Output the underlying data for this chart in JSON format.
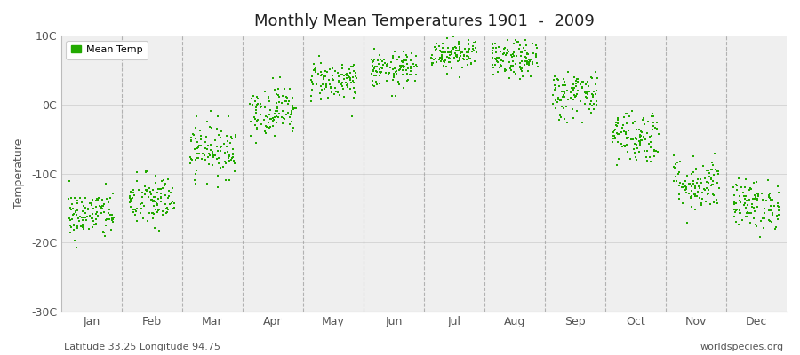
{
  "title": "Monthly Mean Temperatures 1901  -  2009",
  "ylabel": "Temperature",
  "subtitle_left": "Latitude 33.25 Longitude 94.75",
  "subtitle_right": "worldspecies.org",
  "legend_label": "Mean Temp",
  "dot_color": "#22aa00",
  "background_color": "#ffffff",
  "plot_bg_color": "#efefef",
  "months": [
    "Jan",
    "Feb",
    "Mar",
    "Apr",
    "May",
    "Jun",
    "Jul",
    "Aug",
    "Sep",
    "Oct",
    "Nov",
    "Dec"
  ],
  "month_positions": [
    0.5,
    1.5,
    2.5,
    3.5,
    4.5,
    5.5,
    6.5,
    7.5,
    8.5,
    9.5,
    10.5,
    11.5
  ],
  "month_means": [
    -16.0,
    -14.0,
    -6.5,
    -0.8,
    3.5,
    5.0,
    7.5,
    6.5,
    1.5,
    -4.5,
    -11.5,
    -14.5
  ],
  "month_stds": [
    1.8,
    2.0,
    2.0,
    1.8,
    1.5,
    1.3,
    1.2,
    1.4,
    1.8,
    2.0,
    2.0,
    1.8
  ],
  "ylim": [
    -30,
    10
  ],
  "yticks": [
    -30,
    -20,
    -10,
    0,
    10
  ],
  "ytick_labels": [
    "-30C",
    "-20C",
    "-10C",
    "0C",
    "10C"
  ],
  "xlim": [
    0,
    12
  ],
  "n_years": 109,
  "seed": 42,
  "marker_size": 2,
  "dpi": 100,
  "figsize": [
    9.0,
    4.0
  ],
  "vline_color": "#999999",
  "vline_positions": [
    1,
    2,
    3,
    4,
    5,
    6,
    7,
    8,
    9,
    10,
    11
  ],
  "title_fontsize": 13,
  "axis_label_fontsize": 9,
  "tick_fontsize": 9,
  "footnote_fontsize": 8
}
